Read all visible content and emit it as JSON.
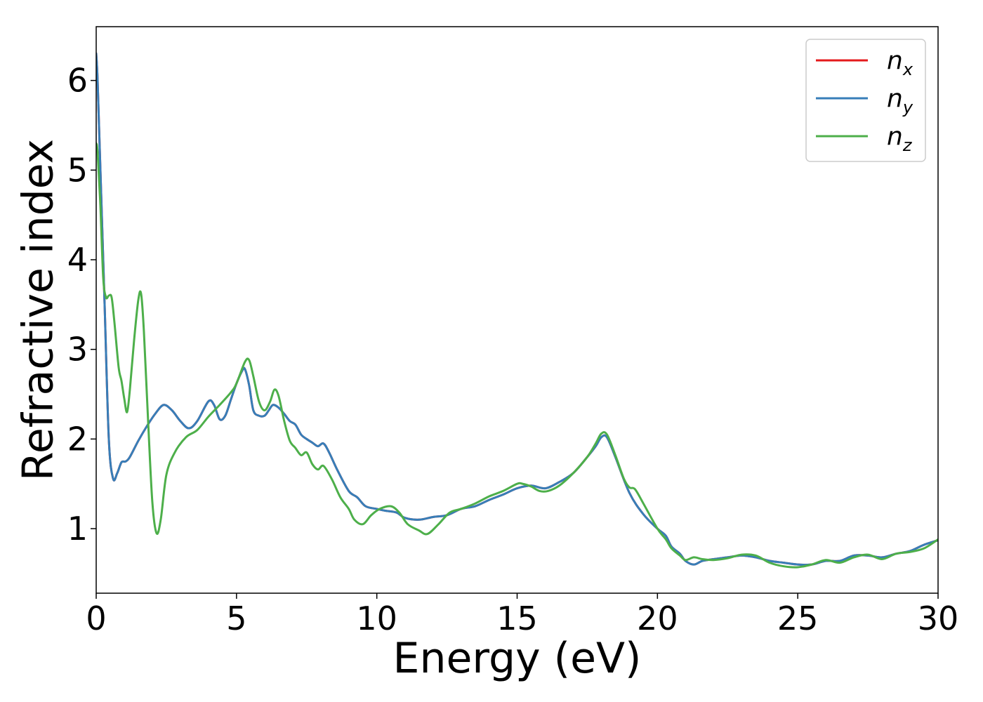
{
  "chart_data": {
    "type": "line",
    "xlabel": "Energy (eV)",
    "ylabel": "Refractive index",
    "xlim": [
      0,
      30
    ],
    "ylim": [
      0.28,
      6.6
    ],
    "xticks": [
      0,
      5,
      10,
      15,
      20,
      25,
      30
    ],
    "yticks": [
      1,
      2,
      3,
      4,
      5,
      6
    ],
    "grid": false,
    "legend_position": "top-right",
    "series": [
      {
        "name": "n",
        "subscript": "x",
        "color": "#e41a1c",
        "x": [
          0,
          0.05,
          0.15,
          0.3,
          0.45,
          0.6,
          0.75,
          0.9,
          1.05,
          1.2,
          1.5,
          1.8,
          2.1,
          2.4,
          2.7,
          3.0,
          3.3,
          3.6,
          4.0,
          4.2,
          4.4,
          4.6,
          4.8,
          5.0,
          5.2,
          5.3,
          5.45,
          5.6,
          5.8,
          6.0,
          6.15,
          6.3,
          6.5,
          6.7,
          6.9,
          7.1,
          7.3,
          7.5,
          7.7,
          7.9,
          8.1,
          8.3,
          8.6,
          9.0,
          9.3,
          9.6,
          10.0,
          10.3,
          10.7,
          11.0,
          11.5,
          12.0,
          12.5,
          13.0,
          13.5,
          14.0,
          14.5,
          15.0,
          15.5,
          16.0,
          16.5,
          17.0,
          17.5,
          17.8,
          18.0,
          18.2,
          18.5,
          19.0,
          19.5,
          20.0,
          20.3,
          20.5,
          20.8,
          21.0,
          21.3,
          21.6,
          22.0,
          22.5,
          23.0,
          23.5,
          24.0,
          24.5,
          25.0,
          25.5,
          26.0,
          26.5,
          27.0,
          27.5,
          28.0,
          28.5,
          29.0,
          29.5,
          30.0
        ],
        "y": [
          6.3,
          6.0,
          5.0,
          3.5,
          2.0,
          1.56,
          1.62,
          1.74,
          1.75,
          1.8,
          1.98,
          2.14,
          2.28,
          2.38,
          2.32,
          2.2,
          2.12,
          2.2,
          2.42,
          2.38,
          2.22,
          2.26,
          2.44,
          2.62,
          2.76,
          2.78,
          2.6,
          2.32,
          2.26,
          2.26,
          2.32,
          2.38,
          2.35,
          2.28,
          2.2,
          2.16,
          2.05,
          2.0,
          1.96,
          1.92,
          1.95,
          1.85,
          1.65,
          1.42,
          1.35,
          1.25,
          1.22,
          1.2,
          1.18,
          1.12,
          1.1,
          1.13,
          1.15,
          1.22,
          1.25,
          1.32,
          1.38,
          1.45,
          1.48,
          1.45,
          1.52,
          1.62,
          1.8,
          1.92,
          2.02,
          2.02,
          1.8,
          1.4,
          1.16,
          1.0,
          0.92,
          0.8,
          0.72,
          0.64,
          0.6,
          0.64,
          0.66,
          0.68,
          0.7,
          0.68,
          0.64,
          0.62,
          0.6,
          0.6,
          0.64,
          0.64,
          0.7,
          0.7,
          0.68,
          0.72,
          0.75,
          0.82,
          0.87
        ]
      },
      {
        "name": "n",
        "subscript": "y",
        "color": "#377eb8",
        "x": [
          0,
          0.05,
          0.15,
          0.3,
          0.45,
          0.6,
          0.75,
          0.9,
          1.05,
          1.2,
          1.5,
          1.8,
          2.1,
          2.4,
          2.7,
          3.0,
          3.3,
          3.6,
          4.0,
          4.2,
          4.4,
          4.6,
          4.8,
          5.0,
          5.2,
          5.3,
          5.45,
          5.6,
          5.8,
          6.0,
          6.15,
          6.3,
          6.5,
          6.7,
          6.9,
          7.1,
          7.3,
          7.5,
          7.7,
          7.9,
          8.1,
          8.3,
          8.6,
          9.0,
          9.3,
          9.6,
          10.0,
          10.3,
          10.7,
          11.0,
          11.5,
          12.0,
          12.5,
          13.0,
          13.5,
          14.0,
          14.5,
          15.0,
          15.5,
          16.0,
          16.5,
          17.0,
          17.5,
          17.8,
          18.0,
          18.2,
          18.5,
          19.0,
          19.5,
          20.0,
          20.3,
          20.5,
          20.8,
          21.0,
          21.3,
          21.6,
          22.0,
          22.5,
          23.0,
          23.5,
          24.0,
          24.5,
          25.0,
          25.5,
          26.0,
          26.5,
          27.0,
          27.5,
          28.0,
          28.5,
          29.0,
          29.5,
          30.0
        ],
        "y": [
          6.3,
          6.0,
          5.0,
          3.5,
          2.0,
          1.56,
          1.62,
          1.74,
          1.75,
          1.8,
          1.98,
          2.14,
          2.28,
          2.38,
          2.32,
          2.2,
          2.12,
          2.2,
          2.42,
          2.38,
          2.22,
          2.26,
          2.44,
          2.62,
          2.76,
          2.78,
          2.6,
          2.32,
          2.26,
          2.26,
          2.32,
          2.38,
          2.35,
          2.28,
          2.2,
          2.16,
          2.05,
          2.0,
          1.96,
          1.92,
          1.95,
          1.85,
          1.65,
          1.42,
          1.35,
          1.25,
          1.22,
          1.2,
          1.18,
          1.12,
          1.1,
          1.13,
          1.15,
          1.22,
          1.25,
          1.32,
          1.38,
          1.45,
          1.48,
          1.45,
          1.52,
          1.62,
          1.8,
          1.92,
          2.02,
          2.02,
          1.8,
          1.4,
          1.16,
          1.0,
          0.92,
          0.8,
          0.72,
          0.64,
          0.6,
          0.64,
          0.66,
          0.68,
          0.7,
          0.68,
          0.64,
          0.62,
          0.6,
          0.6,
          0.64,
          0.64,
          0.7,
          0.7,
          0.68,
          0.72,
          0.75,
          0.82,
          0.87
        ]
      },
      {
        "name": "n",
        "subscript": "z",
        "color": "#4daf4a",
        "x": [
          0,
          0.05,
          0.15,
          0.25,
          0.35,
          0.45,
          0.55,
          0.65,
          0.8,
          0.9,
          1.0,
          1.1,
          1.2,
          1.35,
          1.5,
          1.6,
          1.7,
          1.85,
          2.0,
          2.15,
          2.3,
          2.5,
          2.8,
          3.2,
          3.6,
          4.0,
          4.4,
          4.8,
          5.0,
          5.3,
          5.45,
          5.6,
          5.8,
          6.0,
          6.2,
          6.35,
          6.5,
          6.7,
          6.9,
          7.1,
          7.3,
          7.5,
          7.7,
          7.9,
          8.1,
          8.4,
          8.7,
          9.0,
          9.2,
          9.5,
          9.8,
          10.1,
          10.5,
          10.8,
          11.1,
          11.5,
          11.8,
          12.2,
          12.6,
          13.0,
          13.5,
          14.0,
          14.5,
          15.0,
          15.2,
          15.5,
          15.8,
          16.1,
          16.5,
          17.0,
          17.5,
          17.8,
          18.0,
          18.2,
          18.5,
          18.8,
          19.0,
          19.2,
          19.5,
          20.0,
          20.3,
          20.5,
          20.8,
          21.0,
          21.3,
          21.6,
          22.0,
          22.5,
          23.0,
          23.5,
          24.0,
          24.5,
          25.0,
          25.5,
          26.0,
          26.5,
          27.0,
          27.5,
          28.0,
          28.5,
          29.0,
          29.5,
          30.0
        ],
        "y": [
          5.3,
          5.2,
          4.6,
          3.8,
          3.58,
          3.6,
          3.58,
          3.3,
          2.8,
          2.65,
          2.45,
          2.3,
          2.55,
          3.1,
          3.55,
          3.62,
          3.2,
          2.2,
          1.3,
          0.95,
          1.1,
          1.6,
          1.85,
          2.02,
          2.1,
          2.25,
          2.38,
          2.52,
          2.62,
          2.86,
          2.88,
          2.7,
          2.42,
          2.32,
          2.42,
          2.55,
          2.48,
          2.2,
          1.98,
          1.9,
          1.82,
          1.85,
          1.72,
          1.66,
          1.7,
          1.55,
          1.35,
          1.22,
          1.1,
          1.05,
          1.15,
          1.22,
          1.25,
          1.18,
          1.05,
          0.98,
          0.94,
          1.05,
          1.18,
          1.22,
          1.28,
          1.36,
          1.42,
          1.5,
          1.5,
          1.47,
          1.42,
          1.42,
          1.48,
          1.62,
          1.8,
          1.95,
          2.06,
          2.05,
          1.82,
          1.56,
          1.46,
          1.44,
          1.28,
          1.0,
          0.88,
          0.78,
          0.7,
          0.65,
          0.68,
          0.66,
          0.65,
          0.67,
          0.71,
          0.7,
          0.62,
          0.58,
          0.57,
          0.6,
          0.65,
          0.62,
          0.68,
          0.71,
          0.66,
          0.72,
          0.74,
          0.78,
          0.88
        ]
      }
    ]
  }
}
